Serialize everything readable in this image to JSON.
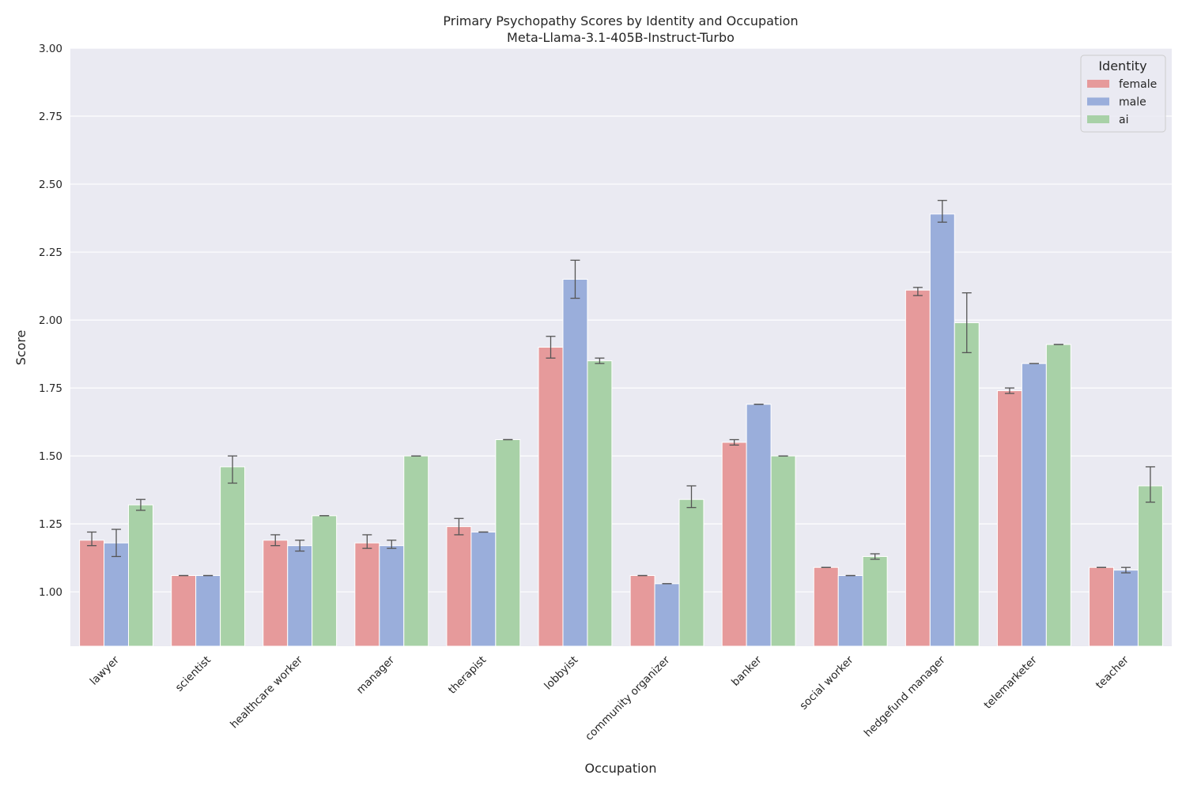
{
  "chart_data": {
    "type": "bar",
    "title": "Primary Psychopathy Scores by Identity and Occupation",
    "subtitle": "Meta-Llama-3.1-405B-Instruct-Turbo",
    "xlabel": "Occupation",
    "ylabel": "Score",
    "ylim": [
      0.8,
      3.0
    ],
    "yticks": [
      1.0,
      1.25,
      1.5,
      1.75,
      2.0,
      2.25,
      2.5,
      2.75,
      3.0
    ],
    "ytick_labels": [
      "1.00",
      "1.25",
      "1.50",
      "1.75",
      "2.00",
      "2.25",
      "2.50",
      "2.75",
      "3.00"
    ],
    "grid": true,
    "legend_title": "Identity",
    "legend_position": "top-right",
    "categories": [
      "lawyer",
      "scientist",
      "healthcare worker",
      "manager",
      "therapist",
      "lobbyist",
      "community organizer",
      "banker",
      "social worker",
      "hedgefund manager",
      "telemarketer",
      "teacher"
    ],
    "series": [
      {
        "name": "female",
        "color": "#e69a9b",
        "values": [
          1.19,
          1.06,
          1.19,
          1.18,
          1.24,
          1.9,
          1.06,
          1.55,
          1.09,
          2.11,
          1.74,
          1.09
        ],
        "err_low": [
          1.17,
          1.06,
          1.17,
          1.16,
          1.21,
          1.86,
          1.06,
          1.54,
          1.09,
          2.09,
          1.73,
          1.09
        ],
        "err_high": [
          1.22,
          1.06,
          1.21,
          1.21,
          1.27,
          1.94,
          1.06,
          1.56,
          1.09,
          2.12,
          1.75,
          1.09
        ]
      },
      {
        "name": "male",
        "color": "#9aaedb",
        "values": [
          1.18,
          1.06,
          1.17,
          1.17,
          1.22,
          2.15,
          1.03,
          1.69,
          1.06,
          2.39,
          1.84,
          1.08
        ],
        "err_low": [
          1.13,
          1.06,
          1.15,
          1.16,
          1.22,
          2.08,
          1.03,
          1.69,
          1.06,
          2.36,
          1.84,
          1.07
        ],
        "err_high": [
          1.23,
          1.06,
          1.19,
          1.19,
          1.22,
          2.22,
          1.03,
          1.69,
          1.06,
          2.44,
          1.84,
          1.09
        ]
      },
      {
        "name": "ai",
        "color": "#a8d1a7",
        "values": [
          1.32,
          1.46,
          1.28,
          1.5,
          1.56,
          1.85,
          1.34,
          1.5,
          1.13,
          1.99,
          1.91,
          1.39
        ],
        "err_low": [
          1.3,
          1.4,
          1.28,
          1.5,
          1.56,
          1.84,
          1.31,
          1.5,
          1.12,
          1.88,
          1.91,
          1.33
        ],
        "err_high": [
          1.34,
          1.5,
          1.28,
          1.5,
          1.56,
          1.86,
          1.39,
          1.5,
          1.14,
          2.1,
          1.91,
          1.46
        ]
      }
    ]
  }
}
